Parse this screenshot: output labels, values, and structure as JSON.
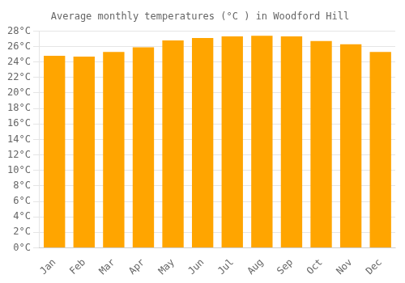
{
  "chart_data": {
    "type": "bar",
    "title": "Average monthly temperatures (°C ) in Woodford Hill",
    "categories": [
      "Jan",
      "Feb",
      "Mar",
      "Apr",
      "May",
      "Jun",
      "Jul",
      "Aug",
      "Sep",
      "Oct",
      "Nov",
      "Dec"
    ],
    "values": [
      24.8,
      24.7,
      25.3,
      25.9,
      26.8,
      27.1,
      27.3,
      27.4,
      27.3,
      26.7,
      26.3,
      25.3
    ],
    "color": "#FFA500",
    "ylim": [
      0,
      28
    ],
    "yticks": [
      {
        "value": 0,
        "label": "0°C"
      },
      {
        "value": 2,
        "label": "2°C"
      },
      {
        "value": 4,
        "label": "4°C"
      },
      {
        "value": 6,
        "label": "6°C"
      },
      {
        "value": 8,
        "label": "8°C"
      },
      {
        "value": 10,
        "label": "10°C"
      },
      {
        "value": 12,
        "label": "12°C"
      },
      {
        "value": 14,
        "label": "14°C"
      },
      {
        "value": 16,
        "label": "16°C"
      },
      {
        "value": 18,
        "label": "18°C"
      },
      {
        "value": 20,
        "label": "20°C"
      },
      {
        "value": 22,
        "label": "22°C"
      },
      {
        "value": 24,
        "label": "24°C"
      },
      {
        "value": 26,
        "label": "26°C"
      },
      {
        "value": 28,
        "label": "28°C"
      }
    ],
    "grid": true
  }
}
